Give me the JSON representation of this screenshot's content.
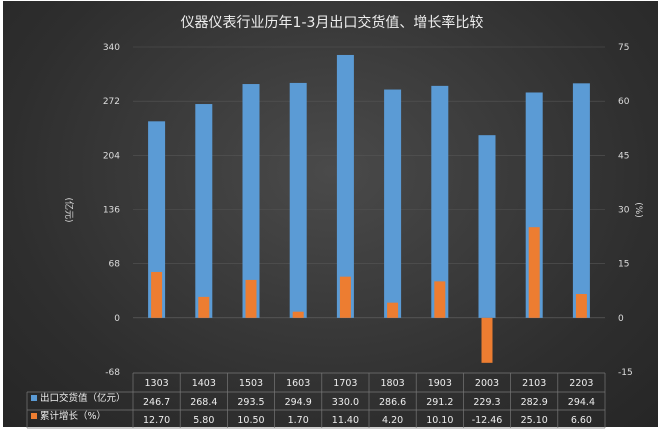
{
  "chart_data": {
    "type": "bar",
    "title": "仪器仪表行业历年1-3月出口交货值、增长率比较",
    "categories": [
      "1303",
      "1403",
      "1503",
      "1603",
      "1703",
      "1803",
      "1903",
      "2003",
      "2103",
      "2203"
    ],
    "series": [
      {
        "name": "出口交货值（亿元）",
        "axis": "left",
        "color": "#5b9bd5",
        "values": [
          246.7,
          268.4,
          293.5,
          294.9,
          330.0,
          286.6,
          291.2,
          229.3,
          282.9,
          294.4
        ],
        "labels": [
          "246.7",
          "268.4",
          "293.5",
          "294.9",
          "330.0",
          "286.6",
          "291.2",
          "229.3",
          "282.9",
          "294.4"
        ]
      },
      {
        "name": "累计增长（%）",
        "axis": "right",
        "color": "#ed7d31",
        "values": [
          12.7,
          5.8,
          10.5,
          1.7,
          11.4,
          4.2,
          10.1,
          -12.46,
          25.1,
          6.6
        ],
        "labels": [
          "12.70",
          "5.80",
          "10.50",
          "1.70",
          "11.40",
          "4.20",
          "10.10",
          "-12.46",
          "25.10",
          "6.60"
        ]
      }
    ],
    "ylabel": "(亿元)",
    "y2label": "(%)",
    "ylim": [
      -68,
      340
    ],
    "yticks": [
      "-68",
      "0",
      "68",
      "136",
      "204",
      "272",
      "340"
    ],
    "y2lim": [
      -15,
      75
    ],
    "y2ticks": [
      "-15",
      "0",
      "15",
      "30",
      "45",
      "60",
      "75"
    ],
    "grid": true,
    "legend": "data-table"
  }
}
